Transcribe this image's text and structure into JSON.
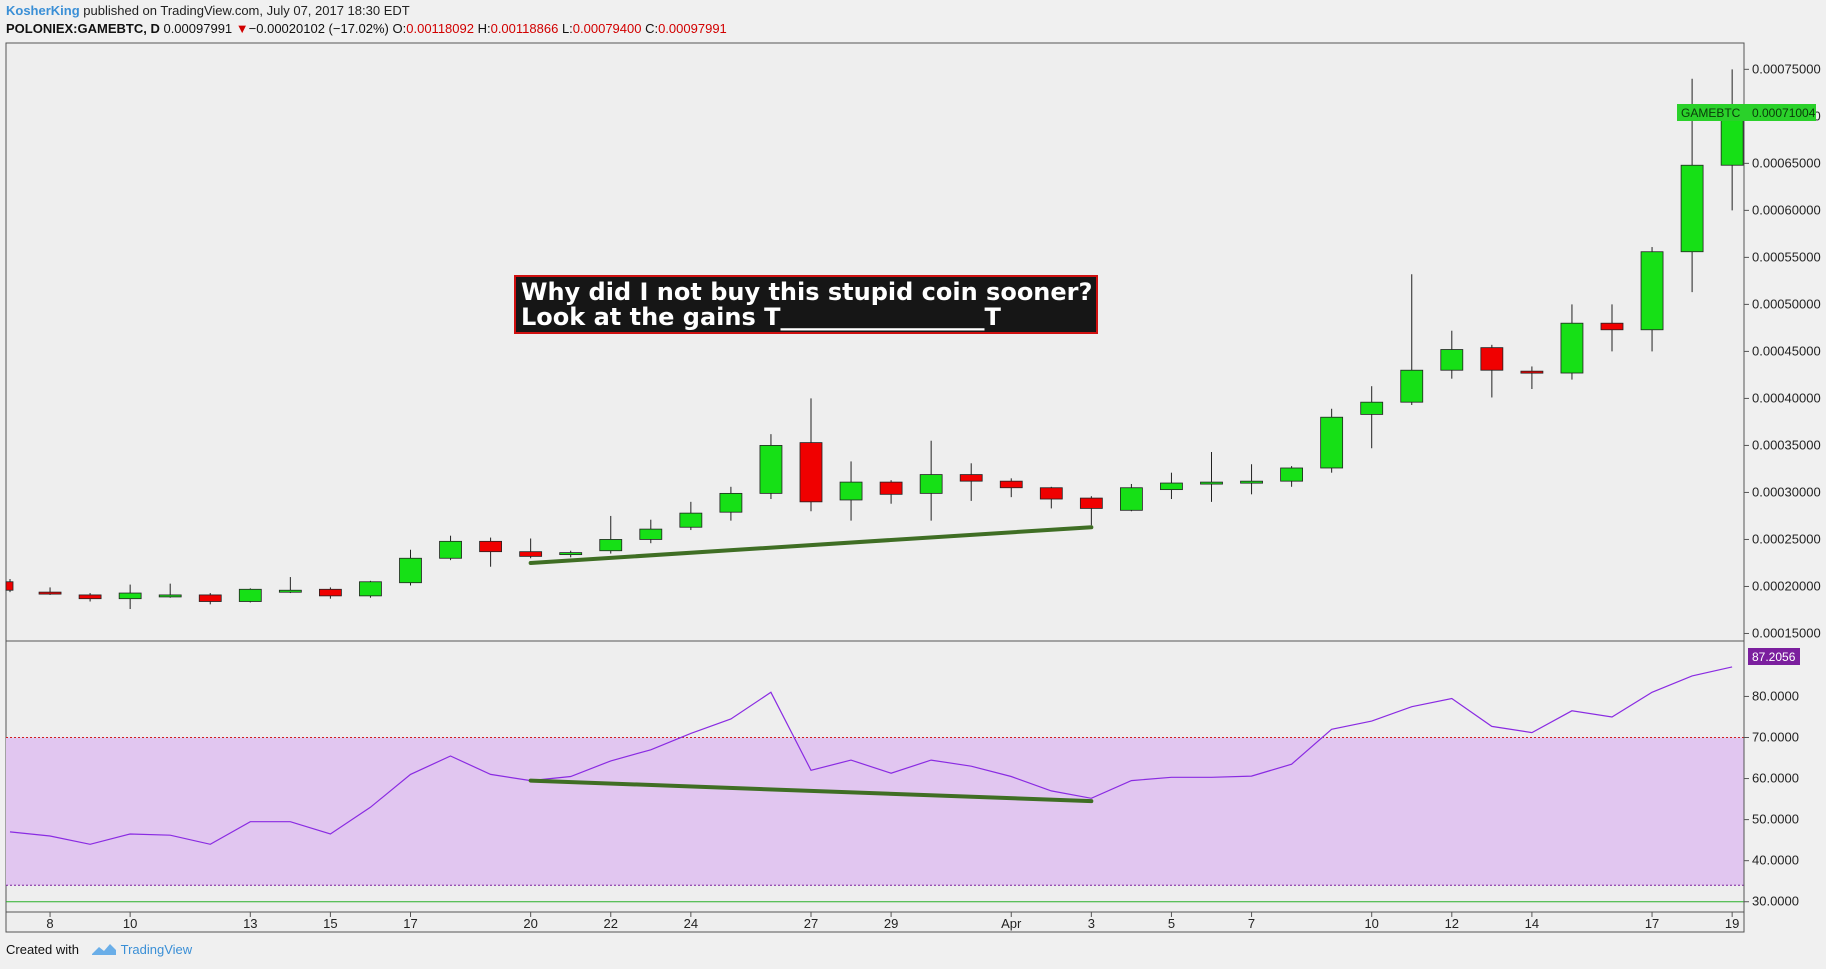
{
  "header": {
    "author": "KosherKing",
    "published_text": " published on TradingView.com, July 07, 2017 18:30 EDT"
  },
  "ohlc": {
    "symbol": "POLONIEX:GAMEBTC, D",
    "last": "0.00097991",
    "arrow": "▼",
    "change": "−0.00020102 (−17.02%)",
    "o_label": "O:",
    "o": "0.00118092",
    "h_label": "H:",
    "h": "0.00118866",
    "l_label": "L:",
    "l": "0.00079400",
    "c_label": "C:",
    "c": "0.00097991"
  },
  "annotation": {
    "line1": "Why did I not buy this stupid coin sooner?",
    "line2": "Look at the gains  T_________________T"
  },
  "price_tag": {
    "symbol": "GAMEBTC",
    "value": "0.00071004"
  },
  "rsi_tag": "87.2056",
  "footer": {
    "created_with": "Created with",
    "brand": "TradingView"
  },
  "colors": {
    "up": "#16e016",
    "down": "#f00000",
    "trendline": "#3f6e24",
    "rsi_line": "#8a2be2",
    "rsi_band": "#e1c6f0",
    "rsi_tag": "#7b1f9e",
    "price_tag": "#2ad12a",
    "annotation_bg": "#161616",
    "annotation_border": "#d01010"
  },
  "chart_data": [
    {
      "type": "candlestick",
      "symbol": "POLONIEX:GAMEBTC",
      "interval": "D",
      "y_ticks": [
        "0.00075000",
        "0.00070000",
        "0.00065000",
        "0.00060000",
        "0.00055000",
        "0.00050000",
        "0.00045000",
        "0.00040000",
        "0.00035000",
        "0.00030000",
        "0.00025000",
        "0.00020000",
        "0.00015000"
      ],
      "ylim": [
        0.000142,
        0.000778
      ],
      "x_ticks": [
        {
          "label": "8",
          "i": 1
        },
        {
          "label": "10",
          "i": 3
        },
        {
          "label": "13",
          "i": 6
        },
        {
          "label": "15",
          "i": 8
        },
        {
          "label": "17",
          "i": 10
        },
        {
          "label": "20",
          "i": 13
        },
        {
          "label": "22",
          "i": 15
        },
        {
          "label": "24",
          "i": 17
        },
        {
          "label": "27",
          "i": 20
        },
        {
          "label": "29",
          "i": 22
        },
        {
          "label": "Apr",
          "i": 25
        },
        {
          "label": "3",
          "i": 27
        },
        {
          "label": "5",
          "i": 29
        },
        {
          "label": "7",
          "i": 31
        },
        {
          "label": "10",
          "i": 34
        },
        {
          "label": "12",
          "i": 36
        },
        {
          "label": "14",
          "i": 38
        },
        {
          "label": "17",
          "i": 41
        },
        {
          "label": "19",
          "i": 43
        }
      ],
      "candles": [
        {
          "o": 0.000205,
          "h": 0.000208,
          "l": 0.000194,
          "c": 0.000196
        },
        {
          "o": 0.000194,
          "h": 0.000199,
          "l": 0.000191,
          "c": 0.000192
        },
        {
          "o": 0.000191,
          "h": 0.000193,
          "l": 0.000184,
          "c": 0.000187
        },
        {
          "o": 0.000187,
          "h": 0.000202,
          "l": 0.000176,
          "c": 0.000193
        },
        {
          "o": 0.00019,
          "h": 0.000203,
          "l": 0.000188,
          "c": 0.000191
        },
        {
          "o": 0.000191,
          "h": 0.000193,
          "l": 0.000181,
          "c": 0.000184
        },
        {
          "o": 0.000184,
          "h": 0.000198,
          "l": 0.000183,
          "c": 0.000197
        },
        {
          "o": 0.000195,
          "h": 0.00021,
          "l": 0.000193,
          "c": 0.000196
        },
        {
          "o": 0.000197,
          "h": 0.000199,
          "l": 0.000187,
          "c": 0.00019
        },
        {
          "o": 0.00019,
          "h": 0.000206,
          "l": 0.000188,
          "c": 0.000205
        },
        {
          "o": 0.000204,
          "h": 0.000239,
          "l": 0.000201,
          "c": 0.00023
        },
        {
          "o": 0.00023,
          "h": 0.000254,
          "l": 0.000228,
          "c": 0.000248
        },
        {
          "o": 0.000248,
          "h": 0.000252,
          "l": 0.000221,
          "c": 0.000237
        },
        {
          "o": 0.000237,
          "h": 0.000251,
          "l": 0.00023,
          "c": 0.000232
        },
        {
          "o": 0.000235,
          "h": 0.000238,
          "l": 0.000231,
          "c": 0.000236
        },
        {
          "o": 0.000238,
          "h": 0.000275,
          "l": 0.000235,
          "c": 0.00025
        },
        {
          "o": 0.00025,
          "h": 0.000271,
          "l": 0.000246,
          "c": 0.000261
        },
        {
          "o": 0.000263,
          "h": 0.00029,
          "l": 0.00026,
          "c": 0.000278
        },
        {
          "o": 0.000279,
          "h": 0.000306,
          "l": 0.00027,
          "c": 0.000299
        },
        {
          "o": 0.000299,
          "h": 0.000362,
          "l": 0.000293,
          "c": 0.00035
        },
        {
          "o": 0.000353,
          "h": 0.0004,
          "l": 0.00028,
          "c": 0.00029
        },
        {
          "o": 0.000292,
          "h": 0.000333,
          "l": 0.00027,
          "c": 0.000311
        },
        {
          "o": 0.000311,
          "h": 0.000313,
          "l": 0.000288,
          "c": 0.000298
        },
        {
          "o": 0.000299,
          "h": 0.000355,
          "l": 0.00027,
          "c": 0.000319
        },
        {
          "o": 0.000319,
          "h": 0.000331,
          "l": 0.000291,
          "c": 0.000312
        },
        {
          "o": 0.000312,
          "h": 0.000315,
          "l": 0.000295,
          "c": 0.000305
        },
        {
          "o": 0.000305,
          "h": 0.000306,
          "l": 0.000283,
          "c": 0.000293
        },
        {
          "o": 0.000294,
          "h": 0.000296,
          "l": 0.000265,
          "c": 0.000283
        },
        {
          "o": 0.000281,
          "h": 0.000309,
          "l": 0.00028,
          "c": 0.000305
        },
        {
          "o": 0.000303,
          "h": 0.000321,
          "l": 0.000293,
          "c": 0.00031
        },
        {
          "o": 0.00031,
          "h": 0.000343,
          "l": 0.00029,
          "c": 0.000311
        },
        {
          "o": 0.00031,
          "h": 0.00033,
          "l": 0.000298,
          "c": 0.000312
        },
        {
          "o": 0.000312,
          "h": 0.000328,
          "l": 0.000306,
          "c": 0.000326
        },
        {
          "o": 0.000326,
          "h": 0.000389,
          "l": 0.000321,
          "c": 0.00038
        },
        {
          "o": 0.000383,
          "h": 0.000413,
          "l": 0.000347,
          "c": 0.000396
        },
        {
          "o": 0.000396,
          "h": 0.000532,
          "l": 0.000393,
          "c": 0.00043
        },
        {
          "o": 0.00043,
          "h": 0.000472,
          "l": 0.000421,
          "c": 0.000452
        },
        {
          "o": 0.000454,
          "h": 0.000457,
          "l": 0.000401,
          "c": 0.00043
        },
        {
          "o": 0.000429,
          "h": 0.000434,
          "l": 0.00041,
          "c": 0.000427
        },
        {
          "o": 0.000427,
          "h": 0.0005,
          "l": 0.00042,
          "c": 0.00048
        },
        {
          "o": 0.00048,
          "h": 0.0005,
          "l": 0.00045,
          "c": 0.000473
        },
        {
          "o": 0.000473,
          "h": 0.000561,
          "l": 0.00045,
          "c": 0.000556
        },
        {
          "o": 0.000556,
          "h": 0.00074,
          "l": 0.000513,
          "c": 0.000648
        },
        {
          "o": 0.000648,
          "h": 0.00075,
          "l": 0.0006,
          "c": 0.00071
        }
      ],
      "trendline": {
        "from": {
          "i": 13,
          "y": 0.000225
        },
        "to": {
          "i": 27,
          "y": 0.000263
        }
      }
    },
    {
      "type": "line",
      "name": "RSI",
      "y_ticks": [
        "80.0000",
        "70.0000",
        "60.0000",
        "50.0000",
        "40.0000",
        "30.0000"
      ],
      "ylim": [
        27.5,
        93.5
      ],
      "band": [
        34,
        70
      ],
      "lower_line": 30,
      "values": [
        47,
        46,
        44,
        46.5,
        46.2,
        44,
        49.5,
        49.5,
        46.5,
        53,
        61,
        65.5,
        61,
        59.5,
        60.5,
        64.3,
        67,
        71,
        74.5,
        81,
        62,
        64.5,
        61.3,
        64.5,
        63,
        60.5,
        57,
        55.2,
        59.5,
        60.3,
        60.3,
        60.6,
        63.5,
        72,
        74,
        77.5,
        79.5,
        72.7,
        71.2,
        76.5,
        75,
        81,
        85,
        87.2
      ],
      "trendline": {
        "from": {
          "i": 13,
          "y": 59.5
        },
        "to": {
          "i": 27,
          "y": 54.5
        }
      }
    }
  ]
}
